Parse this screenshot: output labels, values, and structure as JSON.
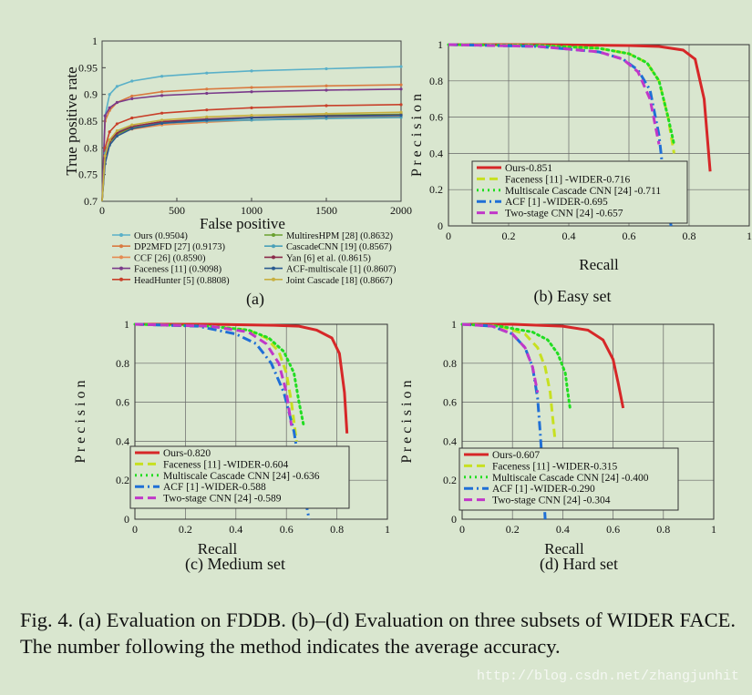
{
  "colors": {
    "background": "#d9e6cf",
    "ours": "#d62728",
    "faceness": "#c7e020",
    "multiscale": "#22dd22",
    "acf": "#1f6fd6",
    "twostage": "#c038c8"
  },
  "caption": "Fig. 4.   (a) Evaluation on FDDB. (b)–(d) Evaluation on three subsets of WIDER FACE. The number following the method indicates the average accuracy.",
  "watermark": "http://blog.csdn.net/zhangjunhit",
  "chart_data": [
    {
      "id": "a",
      "type": "line",
      "label": "(a)",
      "title": "",
      "xlabel": "False positive",
      "ylabel": "True positive rate",
      "xlim": [
        0,
        2000
      ],
      "ylim": [
        0.7,
        1.0
      ],
      "xticks": [
        "0",
        "500",
        "1000",
        "1500",
        "2000"
      ],
      "yticks": [
        "0.7",
        "0.75",
        "0.8",
        "0.85",
        "0.9",
        "0.95",
        "1"
      ],
      "series": [
        {
          "name": "Ours (0.9504)",
          "color": "#5ab0c8",
          "x": [
            0,
            20,
            50,
            100,
            200,
            400,
            700,
            1000,
            1500,
            2000
          ],
          "y": [
            0.7,
            0.86,
            0.9,
            0.915,
            0.925,
            0.934,
            0.94,
            0.944,
            0.948,
            0.952
          ]
        },
        {
          "name": "DP2MFD [27] (0.9173)",
          "color": "#d97a40",
          "x": [
            0,
            20,
            50,
            100,
            200,
            400,
            700,
            1000,
            1500,
            2000
          ],
          "y": [
            0.7,
            0.85,
            0.87,
            0.885,
            0.897,
            0.905,
            0.91,
            0.913,
            0.916,
            0.918
          ]
        },
        {
          "name": "CCF [26] (0.8590)",
          "color": "#e58a50",
          "x": [
            0,
            20,
            50,
            100,
            200,
            400,
            700,
            1000,
            1500,
            2000
          ],
          "y": [
            0.7,
            0.78,
            0.81,
            0.825,
            0.835,
            0.843,
            0.848,
            0.852,
            0.856,
            0.859
          ]
        },
        {
          "name": "Faceness [11] (0.9098)",
          "color": "#7a3a8a",
          "x": [
            0,
            20,
            50,
            100,
            200,
            400,
            700,
            1000,
            1500,
            2000
          ],
          "y": [
            0.7,
            0.86,
            0.875,
            0.885,
            0.892,
            0.898,
            0.902,
            0.905,
            0.908,
            0.91
          ]
        },
        {
          "name": "HeadHunter [5] (0.8808)",
          "color": "#c8402a",
          "x": [
            0,
            20,
            50,
            100,
            200,
            400,
            700,
            1000,
            1500,
            2000
          ],
          "y": [
            0.7,
            0.8,
            0.83,
            0.845,
            0.856,
            0.865,
            0.871,
            0.875,
            0.879,
            0.881
          ]
        },
        {
          "name": "MultiresHPM [28] (0.8632)",
          "color": "#6aa030",
          "x": [
            0,
            20,
            50,
            100,
            200,
            400,
            700,
            1000,
            1500,
            2000
          ],
          "y": [
            0.7,
            0.78,
            0.81,
            0.826,
            0.838,
            0.847,
            0.853,
            0.857,
            0.861,
            0.863
          ]
        },
        {
          "name": "CascadeCNN [19] (0.8567)",
          "color": "#4aa0b8",
          "x": [
            0,
            20,
            50,
            100,
            200,
            400,
            700,
            1000,
            1500,
            2000
          ],
          "y": [
            0.7,
            0.79,
            0.815,
            0.83,
            0.84,
            0.846,
            0.85,
            0.852,
            0.855,
            0.857
          ]
        },
        {
          "name": "Yan [6] et al. (0.8615)",
          "color": "#8a2a4a",
          "x": [
            0,
            20,
            50,
            100,
            200,
            400,
            700,
            1000,
            1500,
            2000
          ],
          "y": [
            0.7,
            0.78,
            0.812,
            0.828,
            0.84,
            0.849,
            0.854,
            0.857,
            0.86,
            0.8615
          ]
        },
        {
          "name": "ACF-multiscale [1] (0.8607)",
          "color": "#2a5a90",
          "x": [
            0,
            20,
            50,
            100,
            200,
            400,
            700,
            1000,
            1500,
            2000
          ],
          "y": [
            0.7,
            0.77,
            0.805,
            0.822,
            0.836,
            0.846,
            0.852,
            0.856,
            0.859,
            0.8607
          ]
        },
        {
          "name": "Joint Cascade [18] (0.8667)",
          "color": "#c8b040",
          "x": [
            0,
            20,
            50,
            100,
            200,
            400,
            700,
            1000,
            1500,
            2000
          ],
          "y": [
            0.7,
            0.785,
            0.815,
            0.832,
            0.843,
            0.852,
            0.858,
            0.861,
            0.864,
            0.8667
          ]
        }
      ]
    },
    {
      "id": "b",
      "type": "line",
      "label": "(b) Easy set",
      "xlabel": "Recall",
      "ylabel": "P r e c i s i o n",
      "xlim": [
        0,
        1
      ],
      "ylim": [
        0,
        1
      ],
      "xticks": [
        "0",
        "0.2",
        "0.4",
        "0.6",
        "0.8",
        "1"
      ],
      "yticks": [
        "0",
        "0.2",
        "0.4",
        "0.6",
        "0.8",
        "1"
      ],
      "series": [
        {
          "name": "Ours-0.851",
          "style": "solid",
          "color": "#d62728",
          "x": [
            0,
            0.3,
            0.6,
            0.7,
            0.78,
            0.82,
            0.85,
            0.87
          ],
          "y": [
            1,
            1,
            0.995,
            0.99,
            0.97,
            0.92,
            0.7,
            0.3
          ]
        },
        {
          "name": "Faceness [11] -WIDER-0.716",
          "style": "dash",
          "color": "#c7e020",
          "x": [
            0,
            0.3,
            0.5,
            0.6,
            0.66,
            0.7,
            0.73,
            0.75
          ],
          "y": [
            1,
            0.995,
            0.98,
            0.95,
            0.9,
            0.8,
            0.6,
            0.4
          ]
        },
        {
          "name": "Multiscale Cascade CNN [24] -0.711",
          "style": "dot",
          "color": "#22dd22",
          "x": [
            0,
            0.3,
            0.5,
            0.6,
            0.66,
            0.7,
            0.73,
            0.75
          ],
          "y": [
            1,
            0.995,
            0.98,
            0.95,
            0.9,
            0.8,
            0.6,
            0.45
          ]
        },
        {
          "name": "ACF [1] -WIDER-0.695",
          "style": "dashdot",
          "color": "#1f6fd6",
          "x": [
            0,
            0.3,
            0.5,
            0.58,
            0.63,
            0.67,
            0.7,
            0.72,
            0.74
          ],
          "y": [
            1,
            0.99,
            0.96,
            0.92,
            0.86,
            0.75,
            0.5,
            0.2,
            0
          ]
        },
        {
          "name": "Two-stage CNN [24] -0.657",
          "style": "dash",
          "color": "#c038c8",
          "x": [
            0,
            0.3,
            0.5,
            0.58,
            0.63,
            0.67,
            0.7
          ],
          "y": [
            1,
            0.99,
            0.96,
            0.92,
            0.85,
            0.7,
            0.45
          ]
        }
      ]
    },
    {
      "id": "c",
      "type": "line",
      "label": "(c) Medium set",
      "xlabel": "Recall",
      "ylabel": "P r e c i s i o n",
      "xlim": [
        0,
        1
      ],
      "ylim": [
        0,
        1
      ],
      "xticks": [
        "0",
        "0.2",
        "0.4",
        "0.6",
        "0.8",
        "1"
      ],
      "yticks": [
        "0",
        "0.2",
        "0.4",
        "0.6",
        "0.8",
        "1"
      ],
      "series": [
        {
          "name": "Ours-0.820",
          "style": "solid",
          "color": "#d62728",
          "x": [
            0,
            0.3,
            0.55,
            0.65,
            0.72,
            0.78,
            0.81,
            0.83,
            0.84
          ],
          "y": [
            1,
            1,
            0.995,
            0.99,
            0.97,
            0.93,
            0.85,
            0.65,
            0.44
          ]
        },
        {
          "name": "Faceness [11] -WIDER-0.604",
          "style": "dash",
          "color": "#c7e020",
          "x": [
            0,
            0.3,
            0.45,
            0.52,
            0.57,
            0.6,
            0.62,
            0.64
          ],
          "y": [
            1,
            0.99,
            0.97,
            0.93,
            0.86,
            0.75,
            0.6,
            0.4
          ]
        },
        {
          "name": "Multiscale Cascade CNN [24] -0.636",
          "style": "dot",
          "color": "#22dd22",
          "x": [
            0,
            0.3,
            0.45,
            0.53,
            0.59,
            0.63,
            0.65,
            0.67
          ],
          "y": [
            1,
            0.99,
            0.97,
            0.93,
            0.86,
            0.75,
            0.6,
            0.47
          ]
        },
        {
          "name": "ACF [1] -WIDER-0.588",
          "style": "dashdot",
          "color": "#1f6fd6",
          "x": [
            0,
            0.25,
            0.4,
            0.48,
            0.54,
            0.59,
            0.63,
            0.66,
            0.69
          ],
          "y": [
            1,
            0.99,
            0.95,
            0.9,
            0.8,
            0.65,
            0.45,
            0.2,
            0
          ]
        },
        {
          "name": "Two-stage CNN [24] -0.589",
          "style": "dash",
          "color": "#c038c8",
          "x": [
            0,
            0.3,
            0.45,
            0.52,
            0.57,
            0.6,
            0.62
          ],
          "y": [
            1,
            0.99,
            0.96,
            0.9,
            0.8,
            0.65,
            0.48
          ]
        }
      ]
    },
    {
      "id": "d",
      "type": "line",
      "label": "(d) Hard set",
      "xlabel": "Recall",
      "ylabel": "P r e c i s i o n",
      "xlim": [
        0,
        1
      ],
      "ylim": [
        0,
        1
      ],
      "xticks": [
        "0",
        "0.2",
        "0.4",
        "0.6",
        "0.8",
        "1"
      ],
      "yticks": [
        "0",
        "0.2",
        "0.4",
        "0.6",
        "0.8",
        "1"
      ],
      "series": [
        {
          "name": "Ours-0.607",
          "style": "solid",
          "color": "#d62728",
          "x": [
            0,
            0.2,
            0.4,
            0.5,
            0.56,
            0.6,
            0.62,
            0.64
          ],
          "y": [
            1,
            1,
            0.99,
            0.97,
            0.92,
            0.82,
            0.7,
            0.57
          ]
        },
        {
          "name": "Faceness [11] -WIDER-0.315",
          "style": "dash",
          "color": "#c7e020",
          "x": [
            0,
            0.15,
            0.25,
            0.3,
            0.33,
            0.35,
            0.36,
            0.37
          ],
          "y": [
            1,
            0.99,
            0.95,
            0.88,
            0.78,
            0.65,
            0.52,
            0.4
          ]
        },
        {
          "name": "Multiscale Cascade CNN [24] -0.400",
          "style": "dot",
          "color": "#22dd22",
          "x": [
            0,
            0.15,
            0.28,
            0.34,
            0.38,
            0.41,
            0.42,
            0.43
          ],
          "y": [
            1,
            0.99,
            0.96,
            0.92,
            0.85,
            0.75,
            0.65,
            0.56
          ]
        },
        {
          "name": "ACF [1] -WIDER-0.290",
          "style": "dashdot",
          "color": "#1f6fd6",
          "x": [
            0,
            0.12,
            0.2,
            0.25,
            0.28,
            0.3,
            0.31,
            0.32,
            0.33
          ],
          "y": [
            1,
            0.99,
            0.95,
            0.88,
            0.78,
            0.62,
            0.45,
            0.25,
            0
          ]
        },
        {
          "name": "Two-stage CNN [24] -0.304",
          "style": "dash",
          "color": "#c038c8",
          "x": [
            0,
            0.12,
            0.2,
            0.25,
            0.28,
            0.3
          ],
          "y": [
            1,
            0.99,
            0.95,
            0.88,
            0.78,
            0.65
          ]
        }
      ]
    }
  ]
}
